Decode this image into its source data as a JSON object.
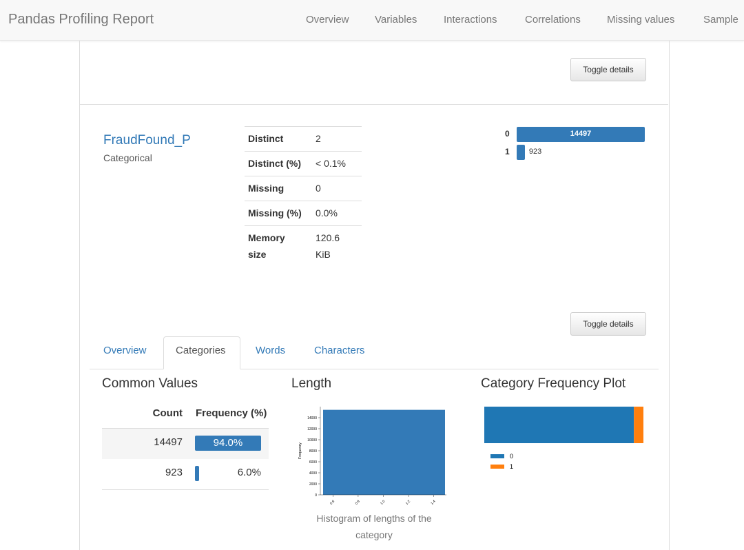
{
  "navbar": {
    "brand": "Pandas Profiling Report",
    "links": [
      "Overview",
      "Variables",
      "Interactions",
      "Correlations",
      "Missing values",
      "Sample"
    ]
  },
  "buttons": [
    "Toggle details",
    "Toggle details"
  ],
  "variable": {
    "name": "FraudFound_P",
    "type": "Categorical",
    "stats": [
      {
        "label": "Distinct",
        "value": "2"
      },
      {
        "label": "Distinct (%)",
        "value": "< 0.1%"
      },
      {
        "label": "Missing",
        "value": "0"
      },
      {
        "label": "Missing (%)",
        "value": "0.0%"
      },
      {
        "label": "Memory size",
        "value": "120.6 KiB"
      }
    ],
    "mini_bar": {
      "type": "bar",
      "categories": [
        "0",
        "1"
      ],
      "values": [
        14497,
        923
      ],
      "color": "#337ab7"
    }
  },
  "tabs": {
    "items": [
      "Overview",
      "Categories",
      "Words",
      "Characters"
    ],
    "active": 1
  },
  "common_values": {
    "title": "Common Values",
    "headers": [
      "Count",
      "Frequency (%)"
    ],
    "rows": [
      {
        "count": 14497,
        "frequency": 94.0,
        "frequency_label": "94.0%"
      },
      {
        "count": 923,
        "frequency": 6.0,
        "frequency_label": "6.0%"
      }
    ],
    "color": "#337ab7"
  },
  "length": {
    "title": "Length",
    "caption": "Histogram of lengths of the category",
    "chart_data": {
      "type": "histogram",
      "bins": [
        0.5,
        1.5
      ],
      "counts": [
        15420
      ],
      "color": "#337ab7",
      "xlim": [
        0.5,
        1.5
      ],
      "xticks": [
        0.6,
        0.8,
        {
          "value": 1,
          "label": "1.0"
        },
        1.2,
        1.4
      ],
      "ylim": [
        0,
        16000
      ],
      "yticks": [
        0,
        2000,
        4000,
        6000,
        8000,
        10000,
        12000,
        14000
      ],
      "ylabel": "Frequency"
    }
  },
  "category_frequency": {
    "title": "Category Frequency Plot",
    "chart_data": {
      "type": "stacked_bar",
      "series": [
        {
          "name": "0",
          "color": "#1f77b4",
          "values": [
            14497
          ]
        },
        {
          "name": "1",
          "color": "#ff7f0e",
          "values": [
            923
          ]
        }
      ]
    }
  }
}
